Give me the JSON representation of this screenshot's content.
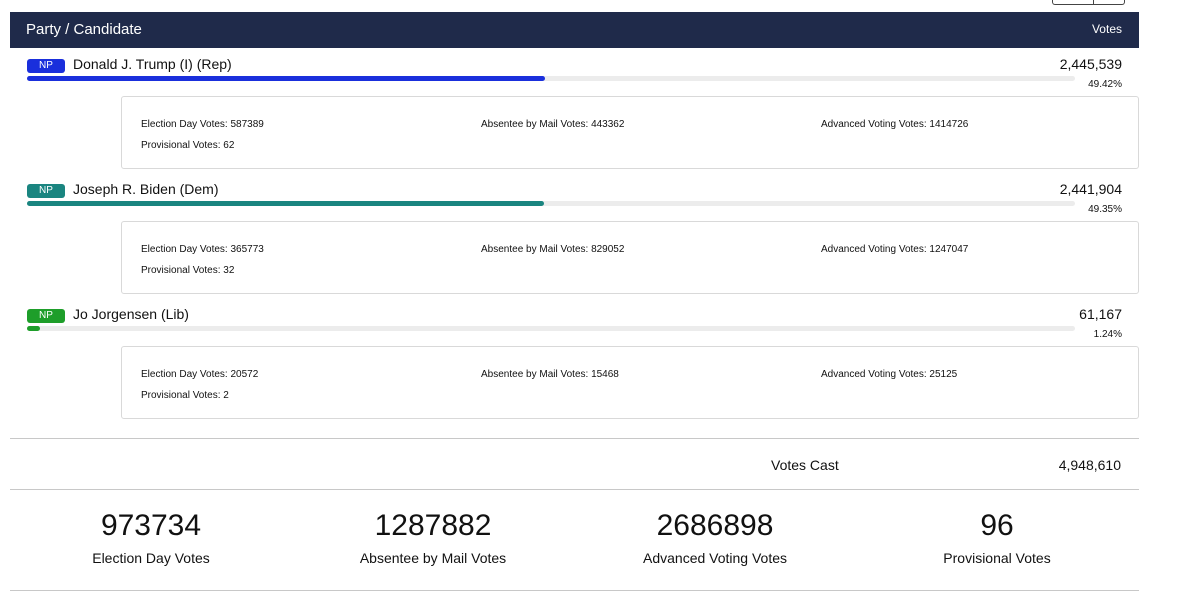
{
  "header": {
    "left_label": "Party / Candidate",
    "right_label": "Votes"
  },
  "candidates": [
    {
      "badge": "NP",
      "name": "Donald J. Trump (I) (Rep)",
      "votes": "2,445,539",
      "pct": "49.42%",
      "pct_value": 49.42,
      "color": "#1a2fdc",
      "details": {
        "election_day": "Election Day Votes: 587389",
        "absentee": "Absentee by Mail Votes: 443362",
        "advanced": "Advanced Voting Votes: 1414726",
        "provisional": "Provisional Votes: 62"
      }
    },
    {
      "badge": "NP",
      "name": "Joseph R. Biden (Dem)",
      "votes": "2,441,904",
      "pct": "49.35%",
      "pct_value": 49.35,
      "color": "#1a8580",
      "details": {
        "election_day": "Election Day Votes: 365773",
        "absentee": "Absentee by Mail Votes: 829052",
        "advanced": "Advanced Voting Votes: 1247047",
        "provisional": "Provisional Votes: 32"
      }
    },
    {
      "badge": "NP",
      "name": "Jo Jorgensen (Lib)",
      "votes": "61,167",
      "pct": "1.24%",
      "pct_value": 1.24,
      "color": "#1e9e2a",
      "details": {
        "election_day": "Election Day Votes: 20572",
        "absentee": "Absentee by Mail Votes: 15468",
        "advanced": "Advanced Voting Votes: 25125",
        "provisional": "Provisional Votes: 2"
      }
    }
  ],
  "votes_cast": {
    "label": "Votes Cast",
    "value": "4,948,610"
  },
  "summary": [
    {
      "value": "973734",
      "label": "Election Day Votes"
    },
    {
      "value": "1287882",
      "label": "Absentee by Mail Votes"
    },
    {
      "value": "2686898",
      "label": "Advanced Voting Votes"
    },
    {
      "value": "96",
      "label": "Provisional Votes"
    }
  ]
}
